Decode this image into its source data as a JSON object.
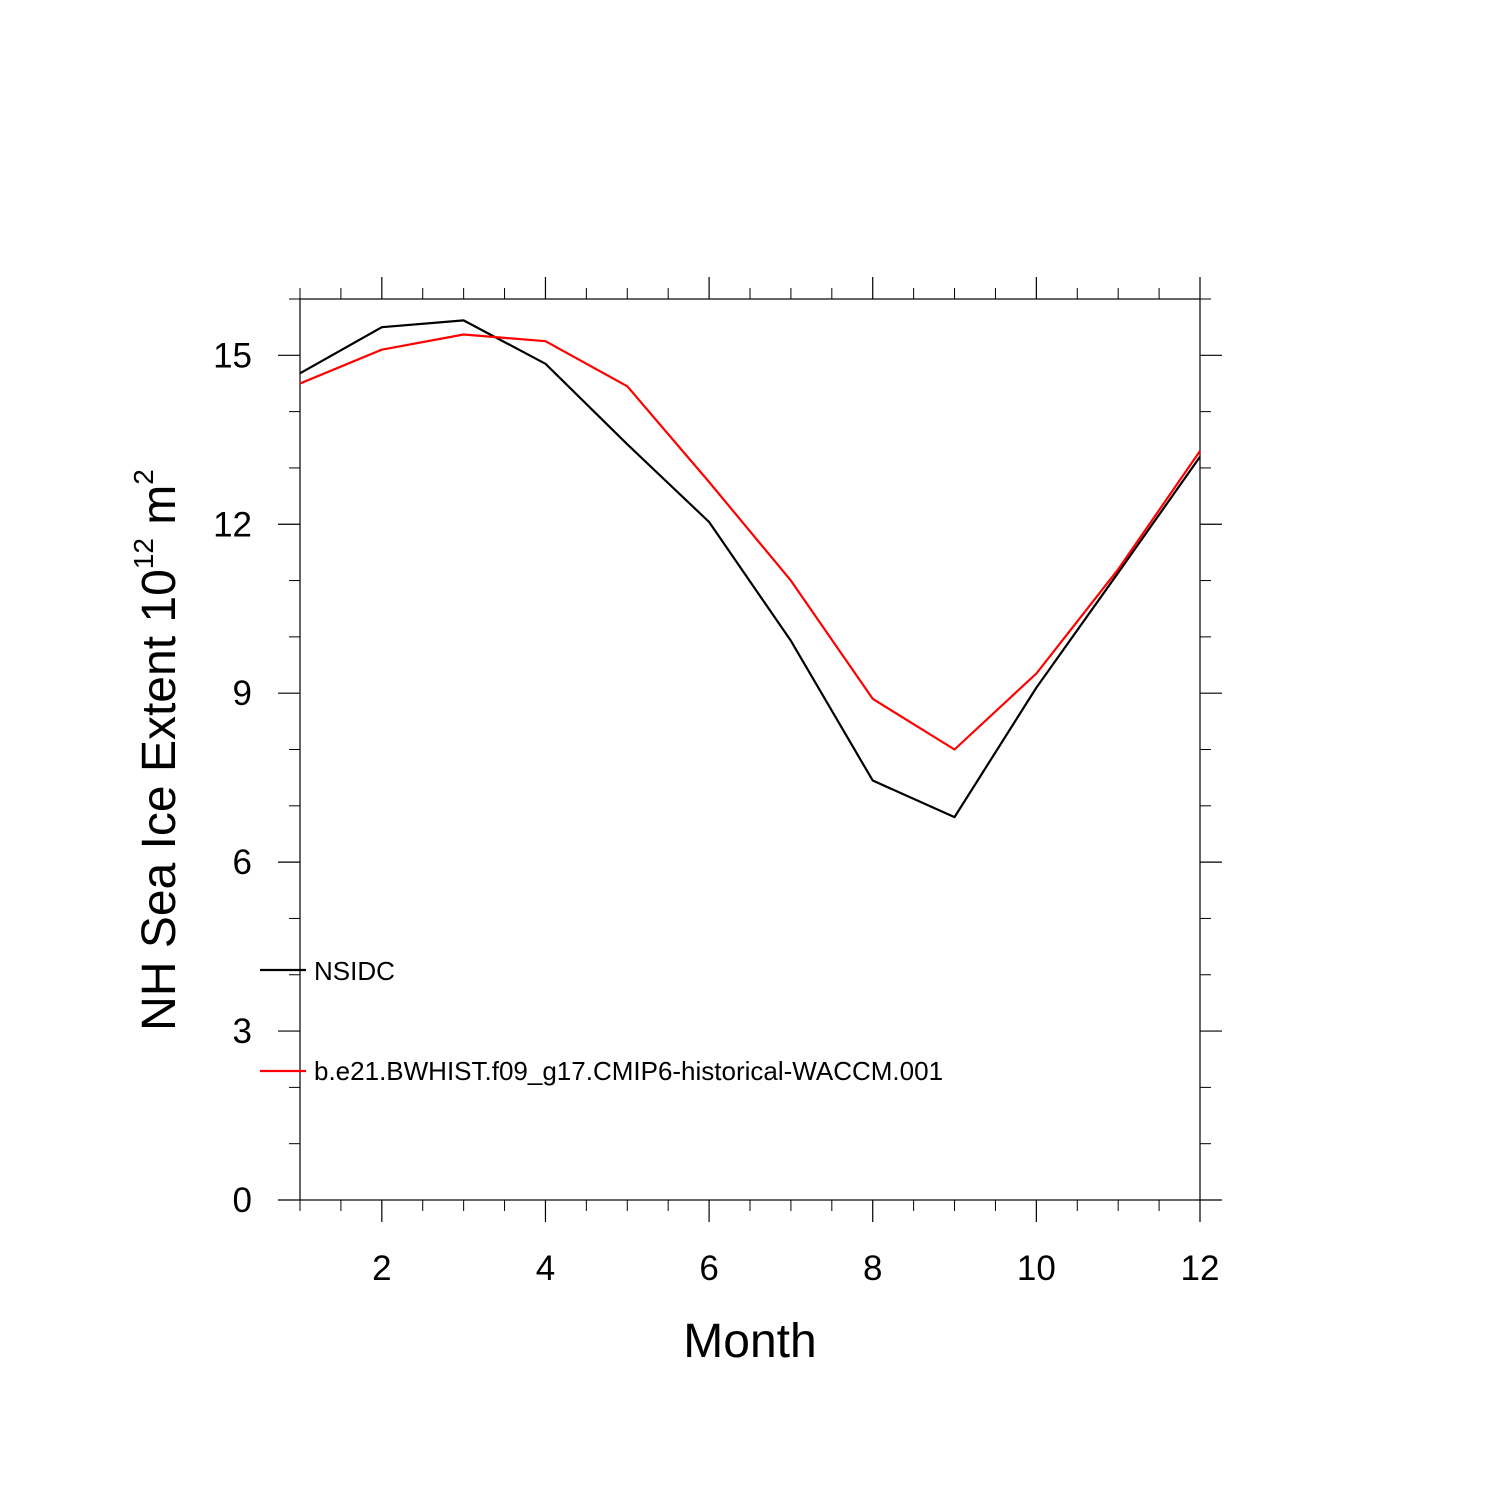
{
  "chart_data": {
    "type": "line",
    "xlabel": "Month",
    "ylabel": {
      "text": "NH Sea Ice Extent 10",
      "exponent": "12",
      "unit": "m",
      "unit_exponent": "2"
    },
    "xlim": [
      1,
      12
    ],
    "ylim": [
      0,
      16
    ],
    "x_ticks": [
      2,
      4,
      6,
      8,
      10,
      12
    ],
    "x_tick_labels": [
      "2",
      "4",
      "6",
      "8",
      "10",
      "12"
    ],
    "x_minor_step": 0.5,
    "y_ticks": [
      0,
      3,
      6,
      9,
      12,
      15
    ],
    "y_tick_labels": [
      "0",
      "3",
      "6",
      "9",
      "12",
      "15"
    ],
    "y_minor_step": 1,
    "grid": false,
    "legend_position": "lower-left",
    "x": [
      1,
      2,
      3,
      4,
      5,
      6,
      7,
      8,
      9,
      10,
      11,
      12
    ],
    "series": [
      {
        "name": "NSIDC",
        "color": "#000000",
        "values": [
          14.68,
          15.5,
          15.62,
          14.85,
          13.42,
          12.04,
          9.93,
          7.45,
          6.8,
          9.1,
          11.14,
          13.2
        ]
      },
      {
        "name": "b.e21.BWHIST.f09_g17.CMIP6-historical-WACCM.001",
        "color": "#ff0000",
        "values": [
          14.5,
          15.1,
          15.37,
          15.25,
          14.45,
          12.75,
          11.0,
          8.9,
          8.0,
          9.35,
          11.2,
          13.3
        ]
      }
    ]
  }
}
